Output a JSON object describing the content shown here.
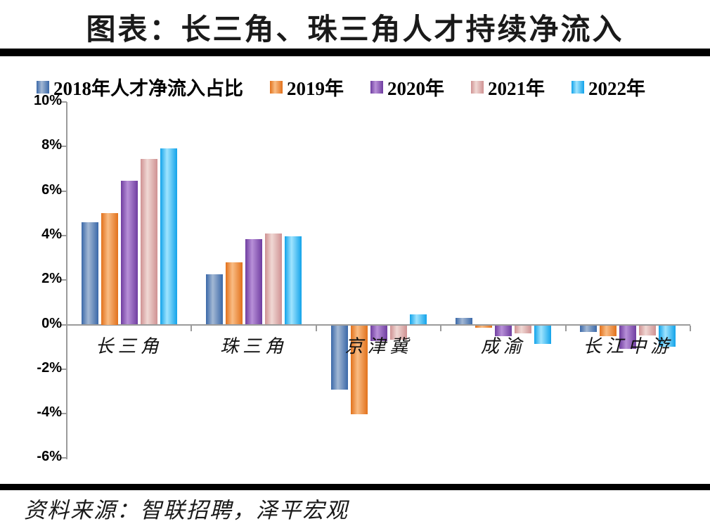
{
  "header": {
    "title": "图表：长三角、珠三角人才持续净流入"
  },
  "footer": {
    "source": "资料来源：智联招聘，泽平宏观"
  },
  "colors": {
    "rule": "#000000",
    "axis": "#9b9b9b",
    "text": "#000000"
  },
  "chart_data": {
    "type": "bar",
    "title": "图表：长三角、珠三角人才持续净流入",
    "xlabel": "",
    "ylabel": "",
    "ylim": [
      -6,
      10
    ],
    "ytick_step": 2,
    "ytick_suffix": "%",
    "grid": false,
    "legend_position": "top",
    "categories": [
      "长三角",
      "珠三角",
      "京津冀",
      "成渝",
      "长江中游"
    ],
    "series": [
      {
        "name": "2018年人才净流入占比",
        "color_edge": "#3a68a8",
        "color_center": "#a3b8d4",
        "values": [
          4.6,
          2.25,
          -2.9,
          0.3,
          -0.3
        ]
      },
      {
        "name": "2019年",
        "color_edge": "#e2711b",
        "color_center": "#f9bc84",
        "values": [
          5.0,
          2.8,
          -4.0,
          -0.1,
          -0.5
        ]
      },
      {
        "name": "2020年",
        "color_edge": "#6f3da0",
        "color_center": "#b890d8",
        "values": [
          6.45,
          3.85,
          -0.7,
          -0.5,
          -1.05
        ]
      },
      {
        "name": "2021年",
        "color_edge": "#cf9192",
        "color_center": "#f0d8d4",
        "values": [
          7.45,
          4.1,
          -0.65,
          -0.35,
          -0.45
        ]
      },
      {
        "name": "2022年",
        "color_edge": "#12a3ea",
        "color_center": "#a0e4fe",
        "values": [
          7.9,
          3.95,
          0.45,
          -0.85,
          -0.95
        ]
      }
    ]
  }
}
